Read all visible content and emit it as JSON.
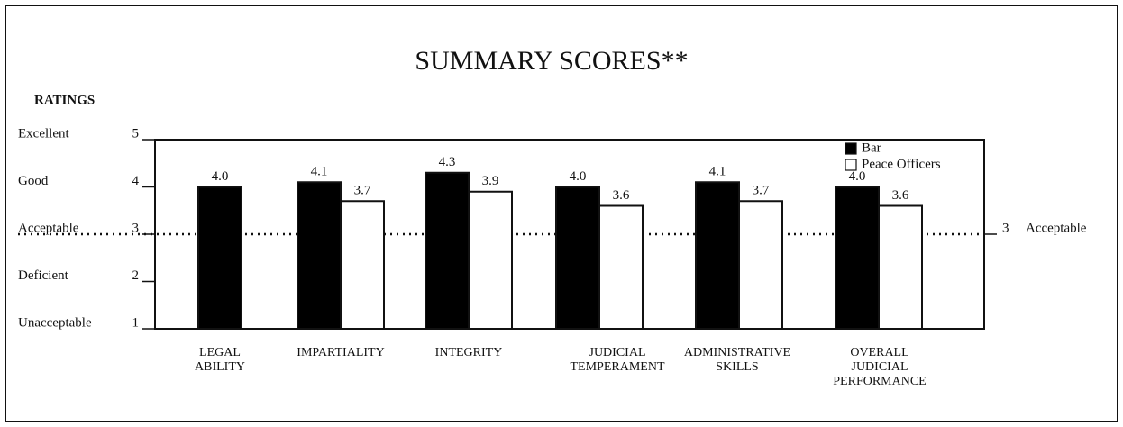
{
  "chart_data": {
    "type": "bar",
    "title": "SUMMARY SCORES**",
    "y_axis_label": "RATINGS",
    "categories": [
      [
        "LEGAL",
        "ABILITY"
      ],
      [
        "IMPARTIALITY"
      ],
      [
        "INTEGRITY"
      ],
      [
        "JUDICIAL",
        "TEMPERAMENT"
      ],
      [
        "ADMINISTRATIVE",
        "SKILLS"
      ],
      [
        "OVERALL",
        "JUDICIAL",
        "PERFORMANCE"
      ]
    ],
    "series": [
      {
        "name": "Bar",
        "color": "#000000",
        "values": [
          4.0,
          4.1,
          4.3,
          4.0,
          4.1,
          4.0
        ],
        "value_labels": [
          "4.0",
          "4.1",
          "4.3",
          "4.0",
          "4.1",
          "4.0"
        ]
      },
      {
        "name": "Peace Officers",
        "color": "#ffffff",
        "values": [
          null,
          3.7,
          3.9,
          3.6,
          3.7,
          3.6
        ],
        "value_labels": [
          null,
          "3.7",
          "3.9",
          "3.6",
          "3.7",
          "3.6"
        ]
      }
    ],
    "ylim": [
      1,
      5
    ],
    "yticks": [
      1,
      2,
      3,
      4,
      5
    ],
    "ytick_names": [
      "Unacceptable",
      "Deficient",
      "Acceptable",
      "Good",
      "Excellent"
    ],
    "reference_line": {
      "value": 3,
      "label": "Acceptable"
    },
    "legend": "top-right"
  }
}
